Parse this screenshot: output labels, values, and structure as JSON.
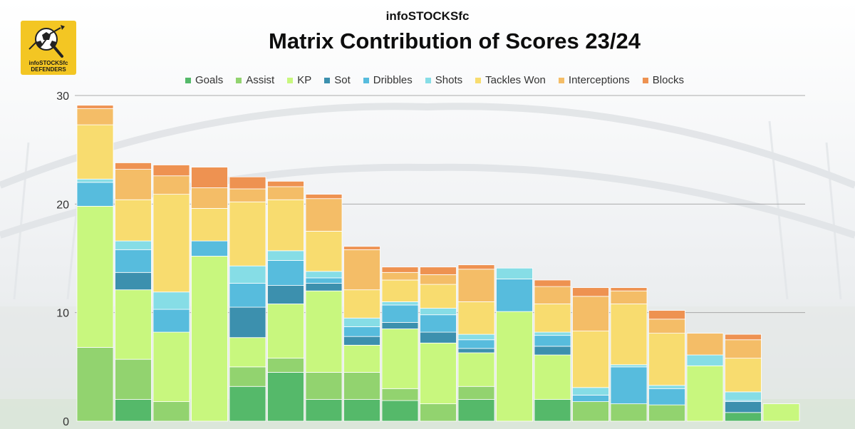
{
  "brand": "infoSTOCKSfc",
  "logo": {
    "line1": "infoSTOCKSfc",
    "line2": "DEFENDERS"
  },
  "colors": {
    "Goals": "#55b96a",
    "Assist": "#92d36f",
    "KP": "#c8f77e",
    "Sot": "#3c90ae",
    "Dribbles": "#57bcdd",
    "Shots": "#86dde6",
    "Tackles Won": "#f8dc6f",
    "Interceptions": "#f4bd67",
    "Blocks": "#ee9251"
  },
  "chart_data": {
    "type": "bar",
    "stacked": true,
    "title": "Matrix Contribution of Scores 23/24",
    "xlabel": "",
    "ylabel": "",
    "ylim": [
      0,
      30
    ],
    "yticks": [
      0,
      10,
      20,
      30
    ],
    "grid": true,
    "legend_position": "top",
    "categories": [
      "",
      "",
      "",
      "",
      "",
      "",
      "",
      "",
      "",
      "",
      "",
      "",
      "",
      "",
      "",
      "",
      "",
      "",
      ""
    ],
    "series": [
      {
        "name": "Goals",
        "values": [
          0,
          2,
          0,
          0,
          3.2,
          4.5,
          2,
          2,
          1.9,
          0,
          2,
          0,
          2,
          0,
          0,
          0,
          0,
          0.8,
          0
        ]
      },
      {
        "name": "Assist",
        "values": [
          6.8,
          3.7,
          1.8,
          0,
          1.8,
          1.3,
          2.5,
          2.5,
          1.1,
          1.6,
          1.2,
          0,
          0,
          1.8,
          1.6,
          1.5,
          0,
          0,
          0
        ]
      },
      {
        "name": "KP",
        "values": [
          13,
          6.4,
          6.4,
          15.2,
          2.7,
          5,
          7.5,
          2.5,
          5.5,
          5.6,
          3.1,
          10.1,
          4.1,
          0,
          0,
          0,
          5.1,
          0,
          1.6
        ]
      },
      {
        "name": "Sot",
        "values": [
          0,
          1.6,
          0,
          0,
          2.8,
          1.7,
          0.7,
          0.8,
          0.6,
          1,
          0.4,
          0,
          0.8,
          0,
          0,
          0,
          0,
          1,
          0
        ]
      },
      {
        "name": "Dribbles",
        "values": [
          2.2,
          2.1,
          2.1,
          1.4,
          2.2,
          2.3,
          0.5,
          0.9,
          1.6,
          1.6,
          0.8,
          3,
          1,
          0.6,
          3.4,
          1.5,
          0,
          0.1,
          0
        ]
      },
      {
        "name": "Shots",
        "values": [
          0.3,
          0.8,
          1.6,
          0,
          1.6,
          0.9,
          0.6,
          0.8,
          0.3,
          0.6,
          0.5,
          1,
          0.3,
          0.7,
          0.2,
          0.3,
          1,
          0.8,
          0
        ]
      },
      {
        "name": "Tackles Won",
        "values": [
          5,
          3.8,
          9,
          3,
          5.9,
          4.7,
          3.7,
          2.6,
          2,
          2.2,
          3,
          0,
          2.6,
          5.2,
          5.6,
          4.8,
          0,
          3.1,
          0
        ]
      },
      {
        "name": "Interceptions",
        "values": [
          1.5,
          2.8,
          1.7,
          1.9,
          1.2,
          1.2,
          3,
          3.7,
          0.7,
          0.9,
          3,
          0,
          1.6,
          3.2,
          1.2,
          1.3,
          2,
          1.7,
          0
        ]
      },
      {
        "name": "Blocks",
        "values": [
          0.3,
          0.6,
          1,
          1.9,
          1.1,
          0.5,
          0.4,
          0.3,
          0.5,
          0.7,
          0.4,
          0,
          0.6,
          0.8,
          0.3,
          0.8,
          0,
          0.5,
          0
        ]
      }
    ]
  }
}
